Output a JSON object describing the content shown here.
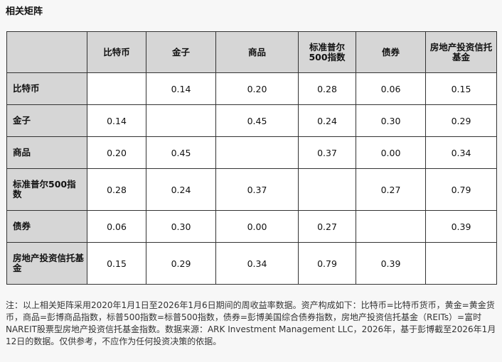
{
  "header": {
    "title": "相关矩阵"
  },
  "table": {
    "columns": [
      "比特币",
      "金子",
      "商品",
      "标准普尔500指数",
      "债券",
      "房地产投资信托基金"
    ],
    "rows": [
      {
        "label": "比特币",
        "cells": [
          null,
          "0.14",
          "0.20",
          "0.28",
          "0.06",
          "0.15"
        ]
      },
      {
        "label": "金子",
        "cells": [
          "0.14",
          null,
          "0.45",
          "0.24",
          "0.30",
          "0.29"
        ]
      },
      {
        "label": "商品",
        "cells": [
          "0.20",
          "0.45",
          null,
          "0.37",
          "0.00",
          "0.34"
        ]
      },
      {
        "label": "标准普尔500指数",
        "cells": [
          "0.28",
          "0.24",
          "0.37",
          null,
          "0.27",
          "0.79"
        ]
      },
      {
        "label": "债券",
        "cells": [
          "0.06",
          "0.30",
          "0.00",
          "0.27",
          null,
          "0.39"
        ]
      },
      {
        "label": "房地产投资信托基金",
        "cells": [
          "0.15",
          "0.29",
          "0.34",
          "0.79",
          "0.39",
          null
        ]
      }
    ]
  },
  "footnote": "注：以上相关矩阵采用2020年1月1日至2026年1月6日期间的周收益率数据。资产构成如下：比特币=比特币货币，黄金=黄金货币，商品=彭博商品指数，标普500指数=标普500指数，债券=彭博美国综合债券指数，房地产投资信托基金（REITs）=富时NAREIT股票型房地产投资信托基金指数。数据来源：ARK Investment Management LLC，2026年，基于彭博截至2026年1月12日的数据。仅供参考，不应作为任何投资决策的依据。"
}
